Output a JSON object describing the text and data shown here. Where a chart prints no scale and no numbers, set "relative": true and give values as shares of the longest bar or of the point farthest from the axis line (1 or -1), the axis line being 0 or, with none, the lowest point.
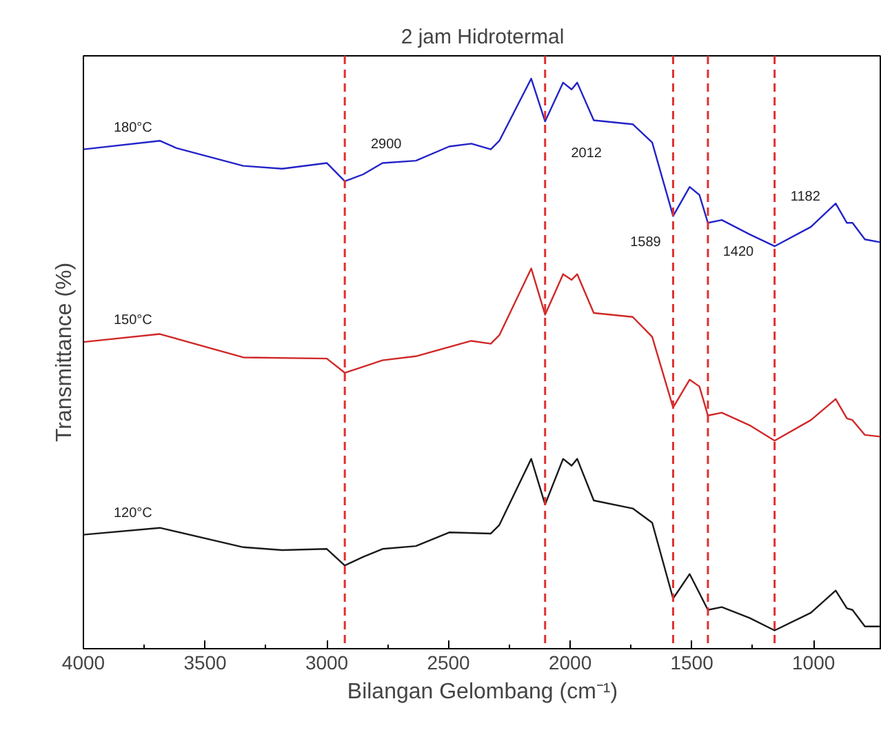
{
  "chart_data": {
    "type": "line",
    "title": "2 jam Hidrotermal",
    "xlabel": "Bilangan Gelombang (cm⁻¹)",
    "ylabel": "Transmittance (%)",
    "relative": true,
    "xlim": [
      4000,
      720
    ],
    "xticks": [
      4000,
      3500,
      3000,
      2500,
      2000,
      1500,
      1000
    ],
    "grid": false,
    "legend": false,
    "marker": "none",
    "line_style": "solid",
    "tick_labels": "x",
    "series": [
      {
        "name": "180°C",
        "color": "#2323c8",
        "x": [
          4000,
          3686,
          3617,
          3343,
          3183,
          3000,
          2926,
          2851,
          2771,
          2634,
          2497,
          2406,
          2326,
          2291,
          2160,
          2103,
          2029,
          1994,
          1971,
          1903,
          1743,
          1663,
          1577,
          1509,
          1469,
          1434,
          1377,
          1263,
          1160,
          1011,
          909,
          863,
          840,
          789,
          726
        ],
        "values": [
          0.876,
          0.891,
          0.878,
          0.847,
          0.842,
          0.852,
          0.82,
          0.832,
          0.852,
          0.856,
          0.881,
          0.886,
          0.876,
          0.891,
          1.0,
          0.925,
          0.993,
          0.981,
          0.993,
          0.927,
          0.92,
          0.888,
          0.759,
          0.81,
          0.796,
          0.747,
          0.752,
          0.727,
          0.706,
          0.74,
          0.781,
          0.747,
          0.747,
          0.718,
          0.713
        ]
      },
      {
        "name": "150°C",
        "color": "#d02828",
        "x": [
          4000,
          3686,
          3343,
          3000,
          2926,
          2771,
          2634,
          2406,
          2326,
          2291,
          2160,
          2103,
          2029,
          1994,
          1971,
          1903,
          1743,
          1663,
          1577,
          1509,
          1469,
          1434,
          1377,
          1263,
          1160,
          1011,
          909,
          863,
          840,
          789,
          726
        ],
        "values": [
          0.538,
          0.552,
          0.511,
          0.509,
          0.484,
          0.506,
          0.513,
          0.54,
          0.535,
          0.55,
          0.667,
          0.586,
          0.657,
          0.647,
          0.657,
          0.589,
          0.582,
          0.547,
          0.423,
          0.472,
          0.46,
          0.409,
          0.414,
          0.392,
          0.365,
          0.401,
          0.438,
          0.404,
          0.401,
          0.375,
          0.372
        ]
      },
      {
        "name": "120°C",
        "color": "#1a1a1a",
        "x": [
          4000,
          3686,
          3343,
          3183,
          3000,
          2926,
          2851,
          2771,
          2634,
          2497,
          2326,
          2291,
          2160,
          2103,
          2029,
          1994,
          1971,
          1903,
          1743,
          1663,
          1577,
          1509,
          1434,
          1377,
          1263,
          1160,
          1011,
          909,
          863,
          840,
          789,
          726
        ],
        "values": [
          0.2,
          0.212,
          0.178,
          0.173,
          0.175,
          0.146,
          0.161,
          0.175,
          0.18,
          0.204,
          0.202,
          0.217,
          0.333,
          0.253,
          0.333,
          0.321,
          0.333,
          0.26,
          0.246,
          0.221,
          0.088,
          0.131,
          0.068,
          0.073,
          0.054,
          0.032,
          0.063,
          0.102,
          0.071,
          0.068,
          0.039,
          0.039
        ]
      }
    ],
    "ref_lines": [
      {
        "axis": "x",
        "value": 2926,
        "color": "#e03030",
        "line_style": "dashed"
      },
      {
        "axis": "x",
        "value": 2103,
        "color": "#e03030",
        "line_style": "dashed"
      },
      {
        "axis": "x",
        "value": 1577,
        "color": "#e03030",
        "line_style": "dashed"
      },
      {
        "axis": "x",
        "value": 1434,
        "color": "#e03030",
        "line_style": "dashed"
      },
      {
        "axis": "x",
        "value": 1160,
        "color": "#e03030",
        "line_style": "dashed"
      }
    ],
    "annotations": [
      {
        "text": "2900",
        "x": 2926,
        "y": 0.82
      },
      {
        "text": "2012",
        "x": 2103,
        "y": 0.925
      },
      {
        "text": "1589",
        "x": 1577,
        "y": 0.759
      },
      {
        "text": "1420",
        "x": 1434,
        "y": 0.747
      },
      {
        "text": "1182",
        "x": 909,
        "y": 0.781
      }
    ]
  }
}
